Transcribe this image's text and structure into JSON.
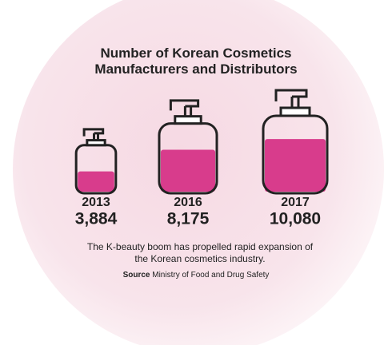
{
  "chart_data": {
    "type": "pictograph",
    "title": "Number of Korean Cosmetics Manufacturers and Distributors",
    "categories": [
      "2013",
      "2016",
      "2017"
    ],
    "values": [
      3884,
      8175,
      10080
    ],
    "value_labels": [
      "3,884",
      "8,175",
      "10,080"
    ],
    "color": "#d83c8c",
    "caption": "The K-beauty boom has propelled rapid expansion of the Korean cosmetics industry.",
    "source_label": "Source",
    "source": "Ministry of Food and Drug Safety"
  }
}
